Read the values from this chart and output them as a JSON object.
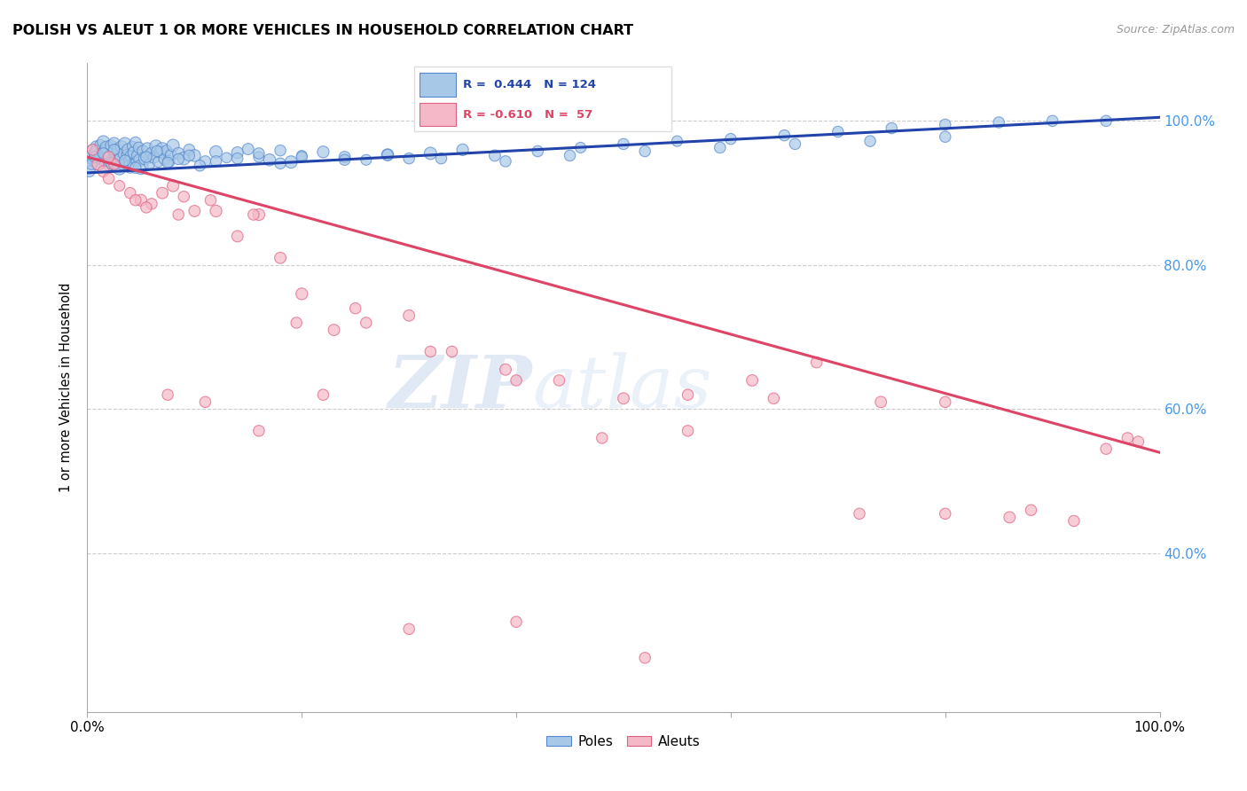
{
  "title": "POLISH VS ALEUT 1 OR MORE VEHICLES IN HOUSEHOLD CORRELATION CHART",
  "source": "Source: ZipAtlas.com",
  "ylabel": "1 or more Vehicles in Household",
  "ytick_labels": [
    "100.0%",
    "80.0%",
    "60.0%",
    "40.0%"
  ],
  "ytick_values": [
    1.0,
    0.8,
    0.6,
    0.4
  ],
  "xlim": [
    0.0,
    1.0
  ],
  "ylim": [
    0.18,
    1.08
  ],
  "blue_color": "#a8c8e8",
  "pink_color": "#f4b8c8",
  "blue_edge_color": "#5588cc",
  "pink_edge_color": "#e06080",
  "blue_line_color": "#2244aa",
  "pink_line_color": "#dd4466",
  "watermark_zip": "ZIP",
  "watermark_atlas": "atlas",
  "poles_label": "Poles",
  "aleuts_label": "Aleuts",
  "blue_trend_y_start": 0.928,
  "blue_trend_y_end": 1.005,
  "pink_trend_y_start": 0.95,
  "pink_trend_y_end": 0.54,
  "poles_x": [
    0.003,
    0.005,
    0.006,
    0.007,
    0.008,
    0.009,
    0.01,
    0.011,
    0.012,
    0.013,
    0.014,
    0.015,
    0.016,
    0.017,
    0.018,
    0.019,
    0.02,
    0.021,
    0.022,
    0.023,
    0.024,
    0.025,
    0.026,
    0.027,
    0.028,
    0.029,
    0.03,
    0.031,
    0.032,
    0.033,
    0.034,
    0.035,
    0.036,
    0.037,
    0.038,
    0.039,
    0.04,
    0.041,
    0.042,
    0.043,
    0.044,
    0.045,
    0.046,
    0.047,
    0.048,
    0.049,
    0.05,
    0.052,
    0.054,
    0.056,
    0.058,
    0.06,
    0.062,
    0.064,
    0.066,
    0.068,
    0.07,
    0.072,
    0.074,
    0.076,
    0.078,
    0.08,
    0.085,
    0.09,
    0.095,
    0.1,
    0.11,
    0.12,
    0.13,
    0.14,
    0.15,
    0.16,
    0.17,
    0.18,
    0.19,
    0.2,
    0.22,
    0.24,
    0.26,
    0.28,
    0.3,
    0.32,
    0.35,
    0.38,
    0.42,
    0.46,
    0.5,
    0.55,
    0.6,
    0.65,
    0.7,
    0.75,
    0.8,
    0.85,
    0.9,
    0.95,
    0.002,
    0.004,
    0.007,
    0.015,
    0.025,
    0.035,
    0.045,
    0.055,
    0.065,
    0.075,
    0.085,
    0.095,
    0.105,
    0.12,
    0.14,
    0.16,
    0.18,
    0.2,
    0.24,
    0.28,
    0.33,
    0.39,
    0.45,
    0.52,
    0.59,
    0.66,
    0.73,
    0.8
  ],
  "poles_y": [
    0.95,
    0.96,
    0.945,
    0.955,
    0.965,
    0.958,
    0.942,
    0.953,
    0.967,
    0.948,
    0.956,
    0.971,
    0.944,
    0.959,
    0.963,
    0.947,
    0.938,
    0.952,
    0.966,
    0.941,
    0.957,
    0.969,
    0.943,
    0.954,
    0.961,
    0.946,
    0.935,
    0.95,
    0.964,
    0.939,
    0.955,
    0.968,
    0.942,
    0.953,
    0.96,
    0.945,
    0.937,
    0.951,
    0.965,
    0.94,
    0.956,
    0.97,
    0.944,
    0.952,
    0.963,
    0.946,
    0.936,
    0.958,
    0.948,
    0.962,
    0.94,
    0.955,
    0.949,
    0.965,
    0.943,
    0.957,
    0.961,
    0.947,
    0.959,
    0.944,
    0.953,
    0.966,
    0.955,
    0.948,
    0.96,
    0.952,
    0.944,
    0.957,
    0.949,
    0.956,
    0.961,
    0.95,
    0.946,
    0.959,
    0.943,
    0.952,
    0.957,
    0.95,
    0.946,
    0.953,
    0.948,
    0.955,
    0.96,
    0.952,
    0.958,
    0.963,
    0.968,
    0.972,
    0.975,
    0.98,
    0.985,
    0.99,
    0.995,
    0.998,
    1.0,
    1.0,
    0.93,
    0.94,
    0.95,
    0.955,
    0.96,
    0.945,
    0.935,
    0.95,
    0.958,
    0.942,
    0.947,
    0.952,
    0.938,
    0.944,
    0.948,
    0.955,
    0.941,
    0.95,
    0.946,
    0.953,
    0.948,
    0.944,
    0.952,
    0.958,
    0.963,
    0.968,
    0.972,
    0.978
  ],
  "poles_size": [
    120,
    80,
    100,
    90,
    70,
    110,
    150,
    85,
    75,
    95,
    80,
    100,
    70,
    90,
    110,
    85,
    75,
    95,
    80,
    100,
    70,
    90,
    110,
    85,
    75,
    95,
    130,
    80,
    100,
    70,
    90,
    110,
    85,
    75,
    95,
    80,
    120,
    100,
    70,
    90,
    110,
    85,
    75,
    95,
    80,
    100,
    140,
    90,
    110,
    85,
    75,
    95,
    80,
    100,
    70,
    90,
    110,
    85,
    75,
    95,
    80,
    100,
    90,
    110,
    85,
    95,
    80,
    100,
    70,
    90,
    85,
    75,
    95,
    80,
    100,
    70,
    90,
    85,
    75,
    95,
    80,
    100,
    90,
    85,
    80,
    75,
    80,
    75,
    80,
    80,
    80,
    80,
    80,
    80,
    80,
    80,
    80,
    80,
    80,
    80,
    80,
    80,
    80,
    80,
    80,
    80,
    80,
    80,
    80,
    80,
    80,
    80,
    80,
    80,
    80,
    80,
    80,
    80,
    80,
    80,
    80,
    80,
    80,
    80
  ],
  "aleuts_x": [
    0.005,
    0.01,
    0.015,
    0.02,
    0.03,
    0.04,
    0.05,
    0.06,
    0.07,
    0.08,
    0.09,
    0.1,
    0.12,
    0.14,
    0.16,
    0.18,
    0.2,
    0.23,
    0.26,
    0.3,
    0.34,
    0.39,
    0.44,
    0.5,
    0.56,
    0.62,
    0.68,
    0.74,
    0.8,
    0.86,
    0.92,
    0.97,
    0.025,
    0.055,
    0.085,
    0.115,
    0.155,
    0.195,
    0.25,
    0.32,
    0.4,
    0.48,
    0.56,
    0.64,
    0.72,
    0.8,
    0.88,
    0.95,
    0.98,
    0.02,
    0.045,
    0.075,
    0.11,
    0.16,
    0.22,
    0.3,
    0.4,
    0.52
  ],
  "aleuts_y": [
    0.96,
    0.94,
    0.93,
    0.92,
    0.91,
    0.9,
    0.89,
    0.885,
    0.9,
    0.91,
    0.895,
    0.875,
    0.875,
    0.84,
    0.87,
    0.81,
    0.76,
    0.71,
    0.72,
    0.73,
    0.68,
    0.655,
    0.64,
    0.615,
    0.62,
    0.64,
    0.665,
    0.61,
    0.61,
    0.45,
    0.445,
    0.56,
    0.94,
    0.88,
    0.87,
    0.89,
    0.87,
    0.72,
    0.74,
    0.68,
    0.64,
    0.56,
    0.57,
    0.615,
    0.455,
    0.455,
    0.46,
    0.545,
    0.555,
    0.95,
    0.89,
    0.62,
    0.61,
    0.57,
    0.62,
    0.295,
    0.305,
    0.255
  ],
  "aleuts_size": [
    80,
    90,
    85,
    80,
    75,
    80,
    90,
    80,
    85,
    90,
    80,
    85,
    90,
    85,
    90,
    85,
    90,
    85,
    80,
    85,
    80,
    85,
    80,
    85,
    80,
    85,
    80,
    85,
    80,
    85,
    80,
    80,
    80,
    80,
    80,
    80,
    80,
    80,
    80,
    80,
    80,
    80,
    80,
    80,
    80,
    80,
    80,
    80,
    80,
    80,
    80,
    80,
    80,
    80,
    80,
    80,
    80,
    80
  ]
}
